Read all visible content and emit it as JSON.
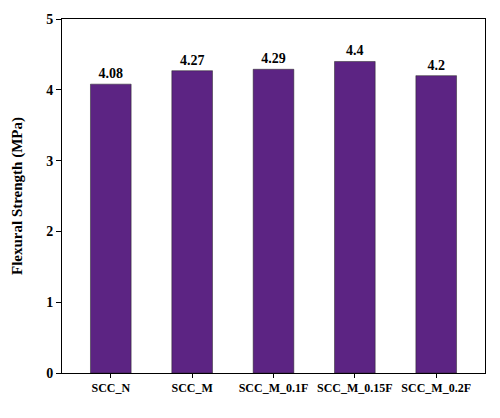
{
  "chart_data": {
    "type": "bar",
    "y_label": "Flexural Strength (MPa)",
    "categories": [
      "SCC_N",
      "SCC_M",
      "SCC_M_0.1F",
      "SCC_M_0.15F",
      "SCC_M_0.2F"
    ],
    "values": [
      4.08,
      4.27,
      4.29,
      4.4,
      4.2
    ],
    "color": "#5c2483",
    "ylim": [
      0,
      5
    ],
    "yticks": [
      0,
      1,
      2,
      3,
      4,
      5
    ],
    "grid": false,
    "data_labels": true
  }
}
